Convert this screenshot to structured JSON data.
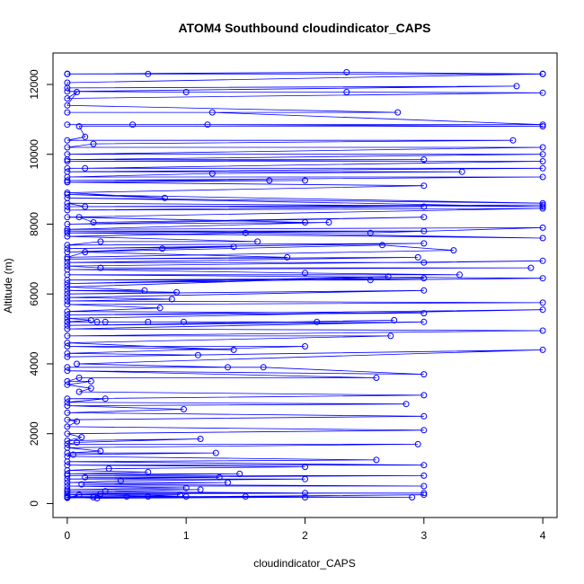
{
  "chart_data": {
    "type": "line",
    "title": "ATOM4 Southbound cloudindicator_CAPS",
    "xlabel": "cloudindicator_CAPS",
    "ylabel": "Altitude (m)",
    "xlim": [
      -0.12,
      4.12
    ],
    "ylim": [
      -400,
      12900
    ],
    "x_ticks": [
      0,
      1,
      2,
      3,
      4
    ],
    "y_ticks": [
      0,
      2000,
      4000,
      6000,
      8000,
      10000,
      12000
    ],
    "x_tick_labels": [
      "0",
      "1",
      "2",
      "3",
      "4"
    ],
    "y_tick_labels": [
      "0",
      "2000",
      "4000",
      "6000",
      "8000",
      "10000",
      "12000"
    ],
    "grid": false,
    "legend": "none",
    "series_color": "#0000ff",
    "marker": "open-circle",
    "series": [
      {
        "points": [
          [
            0,
            12300
          ],
          [
            4,
            12300
          ],
          [
            0,
            12300
          ],
          [
            2.35,
            12350
          ],
          [
            4,
            12300
          ],
          [
            0,
            12300
          ],
          [
            0.68,
            12300
          ],
          [
            4,
            12300
          ],
          [
            0,
            12050
          ],
          [
            0,
            11900
          ],
          [
            3.78,
            11950
          ],
          [
            0,
            11800
          ],
          [
            1.0,
            11780
          ],
          [
            2.35,
            11780
          ],
          [
            4,
            11760
          ],
          [
            0,
            11600
          ],
          [
            0.08,
            11780
          ],
          [
            0,
            11400
          ],
          [
            2.78,
            11200
          ],
          [
            0,
            11200
          ],
          [
            1.22,
            11200
          ],
          [
            4,
            10850
          ],
          [
            0,
            10850
          ],
          [
            0.55,
            10850
          ],
          [
            1.18,
            10850
          ],
          [
            4,
            10800
          ],
          [
            0.1,
            10800
          ],
          [
            0.15,
            10500
          ],
          [
            0,
            10400
          ],
          [
            3.75,
            10400
          ],
          [
            0.22,
            10300
          ],
          [
            0,
            10200
          ],
          [
            4,
            10200
          ],
          [
            0,
            10000
          ],
          [
            4,
            10000
          ],
          [
            0,
            9850
          ],
          [
            3.0,
            9850
          ],
          [
            0,
            9800
          ],
          [
            4,
            9800
          ],
          [
            0.15,
            9600
          ],
          [
            0,
            9600
          ],
          [
            4,
            9600
          ],
          [
            0,
            9500
          ],
          [
            3.32,
            9500
          ],
          [
            1.22,
            9450
          ],
          [
            0,
            9350
          ],
          [
            4,
            9350
          ],
          [
            0,
            9250
          ],
          [
            1.7,
            9250
          ],
          [
            0,
            9200
          ],
          [
            2.0,
            9250
          ],
          [
            0,
            9200
          ],
          [
            3.0,
            9100
          ],
          [
            0,
            8900
          ],
          [
            0.82,
            8750
          ],
          [
            0,
            8850
          ],
          [
            4,
            8600
          ],
          [
            0,
            8750
          ],
          [
            4,
            8500
          ],
          [
            0,
            8600
          ],
          [
            0.15,
            8500
          ],
          [
            4,
            8550
          ],
          [
            0,
            8500
          ],
          [
            3.0,
            8500
          ],
          [
            0,
            8400
          ],
          [
            4,
            8450
          ],
          [
            0,
            8200
          ],
          [
            2.0,
            8050
          ],
          [
            0.1,
            8200
          ],
          [
            0.22,
            8050
          ],
          [
            3.0,
            8200
          ],
          [
            0,
            8000
          ],
          [
            2.2,
            8050
          ],
          [
            0,
            7850
          ],
          [
            4,
            7900
          ],
          [
            2.55,
            7750
          ],
          [
            0,
            7800
          ],
          [
            3.0,
            7800
          ],
          [
            0,
            7750
          ],
          [
            4,
            7600
          ],
          [
            1.5,
            7750
          ],
          [
            0,
            7650
          ],
          [
            1.6,
            7500
          ],
          [
            0.28,
            7500
          ],
          [
            0,
            7400
          ],
          [
            3.0,
            7450
          ],
          [
            0,
            7300
          ],
          [
            1.4,
            7350
          ],
          [
            0.8,
            7300
          ],
          [
            0,
            7200
          ],
          [
            2.65,
            7400
          ],
          [
            3.25,
            7250
          ],
          [
            0,
            7050
          ],
          [
            0.15,
            7200
          ],
          [
            1.85,
            7050
          ],
          [
            0,
            7000
          ],
          [
            2.95,
            7050
          ],
          [
            0,
            6900
          ],
          [
            3.0,
            6900
          ],
          [
            4,
            6950
          ],
          [
            0,
            6800
          ],
          [
            0.28,
            6750
          ],
          [
            3.9,
            6750
          ],
          [
            0,
            6700
          ],
          [
            2.0,
            6600
          ],
          [
            3.3,
            6550
          ],
          [
            0,
            6550
          ],
          [
            4,
            6450
          ],
          [
            2.55,
            6400
          ],
          [
            0,
            6400
          ],
          [
            3.0,
            6450
          ],
          [
            0,
            6300
          ],
          [
            2.7,
            6500
          ],
          [
            0,
            6200
          ],
          [
            0.65,
            6100
          ],
          [
            0,
            6100
          ],
          [
            0.92,
            6050
          ],
          [
            0,
            6000
          ],
          [
            3.0,
            6100
          ],
          [
            0,
            5900
          ],
          [
            0.88,
            5850
          ],
          [
            0,
            5800
          ],
          [
            4,
            5750
          ],
          [
            0,
            5700
          ],
          [
            0.78,
            5600
          ],
          [
            0,
            5500
          ],
          [
            3.0,
            5450
          ],
          [
            0,
            5400
          ],
          [
            4,
            5550
          ],
          [
            0,
            5300
          ],
          [
            0.2,
            5250
          ],
          [
            0,
            5200
          ],
          [
            0.25,
            5200
          ],
          [
            0.68,
            5200
          ],
          [
            0,
            5200
          ],
          [
            0.98,
            5200
          ],
          [
            0.32,
            5200
          ],
          [
            0,
            5200
          ],
          [
            2.1,
            5200
          ],
          [
            2.75,
            5250
          ],
          [
            0,
            5100
          ],
          [
            3.0,
            5200
          ],
          [
            0,
            5000
          ],
          [
            4,
            4950
          ],
          [
            0,
            4800
          ],
          [
            2.72,
            4800
          ],
          [
            0,
            4600
          ],
          [
            1.4,
            4400
          ],
          [
            0,
            4500
          ],
          [
            2.0,
            4500
          ],
          [
            0,
            4300
          ],
          [
            1.1,
            4250
          ],
          [
            0,
            4200
          ],
          [
            4,
            4400
          ],
          [
            0.08,
            4000
          ],
          [
            1.35,
            3900
          ],
          [
            0,
            3900
          ],
          [
            1.65,
            3900
          ],
          [
            3.0,
            3700
          ],
          [
            0,
            3800
          ],
          [
            2.6,
            3600
          ],
          [
            0.1,
            3600
          ],
          [
            0,
            3500
          ],
          [
            0.2,
            3500
          ],
          [
            0,
            3400
          ],
          [
            0.2,
            3300
          ],
          [
            0.1,
            3200
          ],
          [
            3.0,
            3100
          ],
          [
            0,
            3000
          ],
          [
            0.32,
            3000
          ],
          [
            0,
            2900
          ],
          [
            2.85,
            2850
          ],
          [
            0,
            2800
          ],
          [
            0.98,
            2700
          ],
          [
            0,
            2600
          ],
          [
            3.0,
            2500
          ],
          [
            0,
            2400
          ],
          [
            0.08,
            2350
          ],
          [
            0,
            2200
          ],
          [
            3.0,
            2100
          ],
          [
            0,
            2000
          ],
          [
            0.12,
            1900
          ],
          [
            0,
            1800
          ],
          [
            1.12,
            1850
          ],
          [
            0.08,
            1750
          ],
          [
            0,
            1700
          ],
          [
            2.95,
            1700
          ],
          [
            0,
            1600
          ],
          [
            0.28,
            1500
          ],
          [
            0,
            1450
          ],
          [
            1.25,
            1450
          ],
          [
            0.05,
            1400
          ],
          [
            0,
            1350
          ],
          [
            2.6,
            1250
          ],
          [
            0,
            1200
          ],
          [
            3.0,
            1100
          ],
          [
            0,
            1100
          ],
          [
            2.0,
            1050
          ],
          [
            0.35,
            1000
          ],
          [
            0,
            950
          ],
          [
            0.68,
            900
          ],
          [
            0,
            850
          ],
          [
            1.45,
            850
          ],
          [
            0,
            800
          ],
          [
            3.0,
            800
          ],
          [
            0.15,
            750
          ],
          [
            1.28,
            750
          ],
          [
            0,
            700
          ],
          [
            2.0,
            700
          ],
          [
            0.45,
            650
          ],
          [
            0,
            600
          ],
          [
            1.35,
            600
          ],
          [
            0.12,
            550
          ],
          [
            3.0,
            500
          ],
          [
            0,
            500
          ],
          [
            1.0,
            450
          ],
          [
            0,
            400
          ],
          [
            1.12,
            400
          ],
          [
            0.32,
            350
          ],
          [
            0,
            350
          ],
          [
            2.0,
            300
          ],
          [
            0,
            300
          ],
          [
            3.0,
            300
          ],
          [
            0.28,
            280
          ],
          [
            0,
            250
          ],
          [
            0.95,
            250
          ],
          [
            0.5,
            200
          ],
          [
            0,
            200
          ],
          [
            1.5,
            200
          ],
          [
            2.9,
            180
          ],
          [
            0,
            180
          ],
          [
            0.25,
            150
          ],
          [
            2.0,
            180
          ],
          [
            0.68,
            200
          ],
          [
            0,
            170
          ],
          [
            3.0,
            250
          ],
          [
            0,
            160
          ],
          [
            0.1,
            250
          ],
          [
            1.0,
            200
          ],
          [
            0.22,
            180
          ]
        ]
      }
    ]
  }
}
